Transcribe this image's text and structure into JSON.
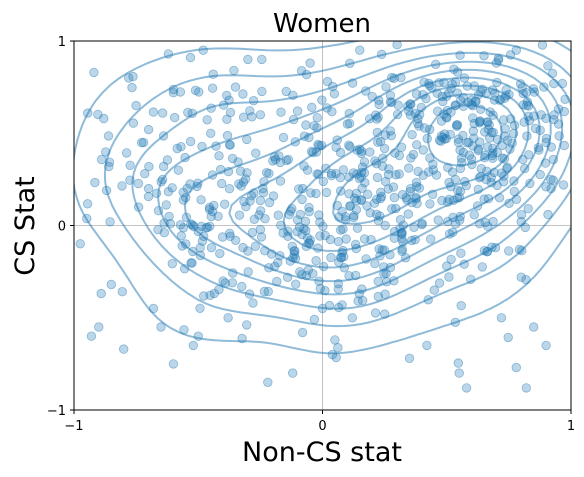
{
  "chart_data": {
    "type": "scatter",
    "title": "Women",
    "xlabel": "Non-CS stat",
    "ylabel": "CS Stat",
    "xlim": [
      -1,
      1
    ],
    "ylim": [
      -1,
      1
    ],
    "xticks": [
      {
        "value": -1,
        "label": "−1"
      },
      {
        "value": 0,
        "label": "0"
      },
      {
        "value": 1,
        "label": "1"
      }
    ],
    "yticks": [
      {
        "value": -1,
        "label": "−1"
      },
      {
        "value": 0,
        "label": "0"
      },
      {
        "value": 1,
        "label": "1"
      }
    ],
    "grid": true,
    "point_color": "#1f77b4",
    "point_opacity": 0.3,
    "contour_color": "#1f77b4",
    "contour_opacity": 0.5,
    "density_centers": [
      {
        "x": 0.08,
        "y": 0.1,
        "sx": 0.4,
        "sy": 0.33,
        "w": 0.55
      },
      {
        "x": 0.62,
        "y": 0.5,
        "sx": 0.24,
        "sy": 0.24,
        "w": 0.35
      },
      {
        "x": -0.55,
        "y": 0.4,
        "sx": 0.28,
        "sy": 0.33,
        "w": 0.1
      }
    ],
    "series": [
      {
        "values": [
          [
            -0.92,
            0.83
          ],
          [
            -0.88,
            0.58
          ],
          [
            -0.86,
            0.32
          ],
          [
            -0.9,
            -0.55
          ],
          [
            -0.93,
            -0.6
          ],
          [
            -0.8,
            -0.67
          ],
          [
            -0.78,
            0.8
          ],
          [
            -0.75,
            0.65
          ],
          [
            -0.72,
            0.45
          ],
          [
            -0.7,
            0.2
          ],
          [
            -0.74,
            0.1
          ],
          [
            -0.68,
            -0.45
          ],
          [
            -0.65,
            -0.55
          ],
          [
            -0.62,
            0.93
          ],
          [
            -0.6,
            0.72
          ],
          [
            -0.58,
            0.3
          ],
          [
            -0.55,
            -0.1
          ],
          [
            -0.52,
            -0.65
          ],
          [
            -0.48,
            0.95
          ],
          [
            -0.45,
            0.5
          ],
          [
            -0.42,
            0.05
          ],
          [
            -0.4,
            -0.3
          ],
          [
            -0.38,
            -0.5
          ],
          [
            -0.35,
            0.75
          ],
          [
            -0.6,
            -0.75
          ],
          [
            -0.5,
            -0.6
          ],
          [
            -0.85,
            -0.32
          ],
          [
            -0.66,
            0.08
          ],
          [
            -0.7,
            0.52
          ],
          [
            -0.44,
            0.82
          ],
          [
            -0.3,
            0.9
          ],
          [
            -0.25,
            0.6
          ],
          [
            -0.2,
            0.35
          ],
          [
            -0.18,
            -0.2
          ],
          [
            -0.22,
            -0.85
          ],
          [
            -0.12,
            -0.8
          ],
          [
            -0.05,
            0.88
          ],
          [
            0.05,
            -0.62
          ],
          [
            0.04,
            -0.7
          ],
          [
            0.12,
            -0.5
          ],
          [
            0.15,
            0.95
          ],
          [
            0.2,
            0.7
          ],
          [
            0.3,
            0.98
          ],
          [
            0.35,
            -0.72
          ],
          [
            0.45,
            -0.35
          ],
          [
            0.5,
            -0.22
          ],
          [
            0.55,
            -0.8
          ],
          [
            0.58,
            -0.88
          ],
          [
            0.65,
            0.92
          ],
          [
            0.7,
            0.88
          ],
          [
            0.78,
            0.95
          ],
          [
            0.82,
            0.72
          ],
          [
            0.88,
            0.6
          ],
          [
            0.9,
            0.45
          ],
          [
            0.92,
            0.2
          ],
          [
            0.95,
            0.55
          ],
          [
            0.97,
            0.22
          ],
          [
            0.8,
            -0.28
          ],
          [
            0.85,
            -0.55
          ],
          [
            0.9,
            -0.65
          ],
          [
            0.82,
            -0.88
          ],
          [
            0.78,
            -0.77
          ],
          [
            0.72,
            -0.5
          ],
          [
            0.42,
            -0.65
          ],
          [
            0.25,
            -0.48
          ],
          [
            0.0,
            -0.45
          ],
          [
            -0.08,
            -0.58
          ],
          [
            -0.28,
            -0.42
          ],
          [
            -0.32,
            -0.12
          ],
          [
            0.02,
            0.78
          ],
          [
            0.1,
            0.55
          ],
          [
            -0.1,
            0.62
          ]
        ]
      }
    ]
  }
}
